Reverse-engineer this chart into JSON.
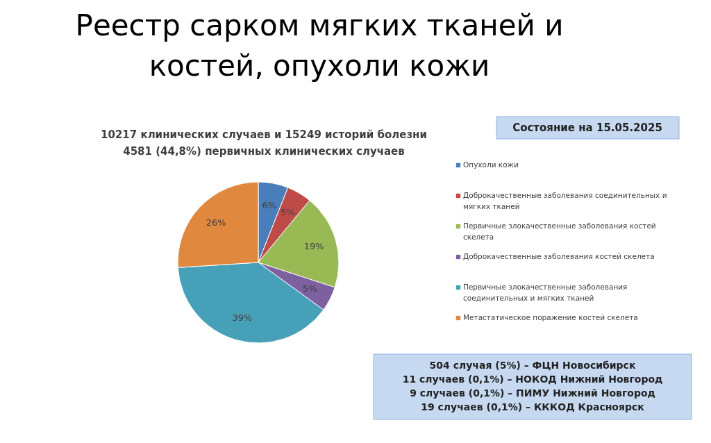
{
  "chart_data": {
    "type": "pie",
    "title": "Реестр сарком мягких тканей и костей, опухоли кожи",
    "subtitle": "10217 клинических случаев и 15249 историй болезни 4581 (44,8%) первичных клинических случаев",
    "categories": [
      "Опухоли кожи",
      "Доброкачественные заболевания соединительных и мягких тканей",
      "Первичные злокачественные заболевания костей скелета",
      "Доброкачественные заболевания костей скелета",
      "Первичные злокачественные заболевания соединительных и мягких тканей",
      "Метастатическое поражение костей скелета"
    ],
    "values": [
      6,
      5,
      19,
      5,
      39,
      26
    ],
    "value_labels": [
      "6%",
      "5%",
      "19%",
      "5%",
      "39%",
      "26%"
    ],
    "colors": [
      "#4a7ebb",
      "#be4b48",
      "#98b954",
      "#7d60a0",
      "#46a0b8",
      "#e0883e"
    ],
    "legend": "right",
    "annotations": [
      "Состояние на 15.05.2025",
      "504 случая (5%) – ФЦН Новосибирск\n11 случаев (0,1%) – НОКОД Нижний Новгород\n9 случаев (0,1%) – ПИМУ Нижний Новгород\n19 случаев (0,1%) – КККОД Красноярск"
    ]
  }
}
